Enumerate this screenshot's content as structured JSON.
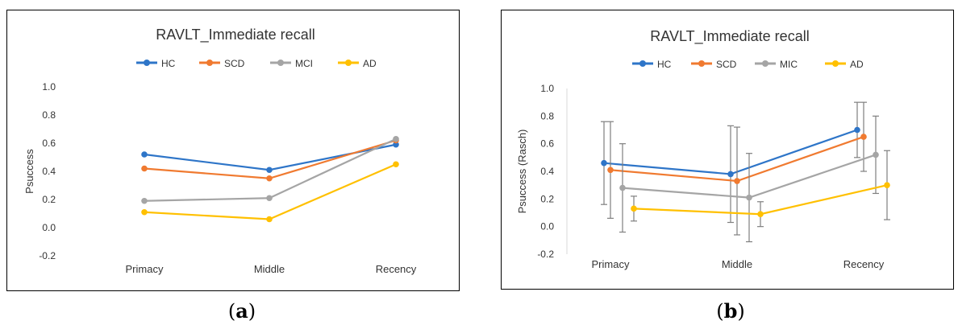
{
  "panels": [
    {
      "label_open": "(",
      "label_letter": "a",
      "label_close": ")"
    },
    {
      "label_open": "(",
      "label_letter": "b",
      "label_close": ")"
    }
  ],
  "chart_data": [
    {
      "type": "line",
      "title": "RAVLT_Immediate recall",
      "xlabel": "",
      "ylabel": "Psuccess",
      "categories": [
        "Primacy",
        "Middle",
        "Recency"
      ],
      "ylim": [
        -0.2,
        1.0
      ],
      "yticks": [
        "1.0",
        "0.8",
        "0.6",
        "0.4",
        "0.2",
        "0.0",
        "-0.2"
      ],
      "grid": false,
      "legend_position": "top",
      "series": [
        {
          "name": "HC",
          "color": "#2E75C8",
          "values": [
            0.52,
            0.41,
            0.59
          ]
        },
        {
          "name": "SCD",
          "color": "#F07A30",
          "values": [
            0.42,
            0.35,
            0.62
          ]
        },
        {
          "name": "MCI",
          "color": "#A5A5A5",
          "values": [
            0.19,
            0.21,
            0.63
          ]
        },
        {
          "name": "AD",
          "color": "#FFC000",
          "values": [
            0.11,
            0.06,
            0.45
          ]
        }
      ]
    },
    {
      "type": "line",
      "title": "RAVLT_Immediate recall",
      "xlabel": "",
      "ylabel": "Psuccess (Rasch)",
      "categories": [
        "Primacy",
        "Middle",
        "Recency"
      ],
      "ylim": [
        -0.2,
        1.0
      ],
      "yticks": [
        "1.0",
        "0.8",
        "0.6",
        "0.4",
        "0.2",
        "0.0",
        "-0.2"
      ],
      "grid": false,
      "legend_position": "top",
      "error_bars": true,
      "error_bar_color": "#7F7F7F",
      "series": [
        {
          "name": "HC",
          "color": "#2E75C8",
          "values": [
            0.46,
            0.38,
            0.7
          ],
          "error": [
            0.3,
            0.35,
            0.2
          ]
        },
        {
          "name": "SCD",
          "color": "#F07A30",
          "values": [
            0.41,
            0.33,
            0.65
          ],
          "error": [
            0.35,
            0.39,
            0.25
          ]
        },
        {
          "name": "MIC",
          "color": "#A5A5A5",
          "values": [
            0.28,
            0.21,
            0.52
          ],
          "error": [
            0.32,
            0.32,
            0.28
          ]
        },
        {
          "name": "AD",
          "color": "#FFC000",
          "values": [
            0.13,
            0.09,
            0.3
          ],
          "error": [
            0.09,
            0.09,
            0.25
          ]
        }
      ]
    }
  ]
}
